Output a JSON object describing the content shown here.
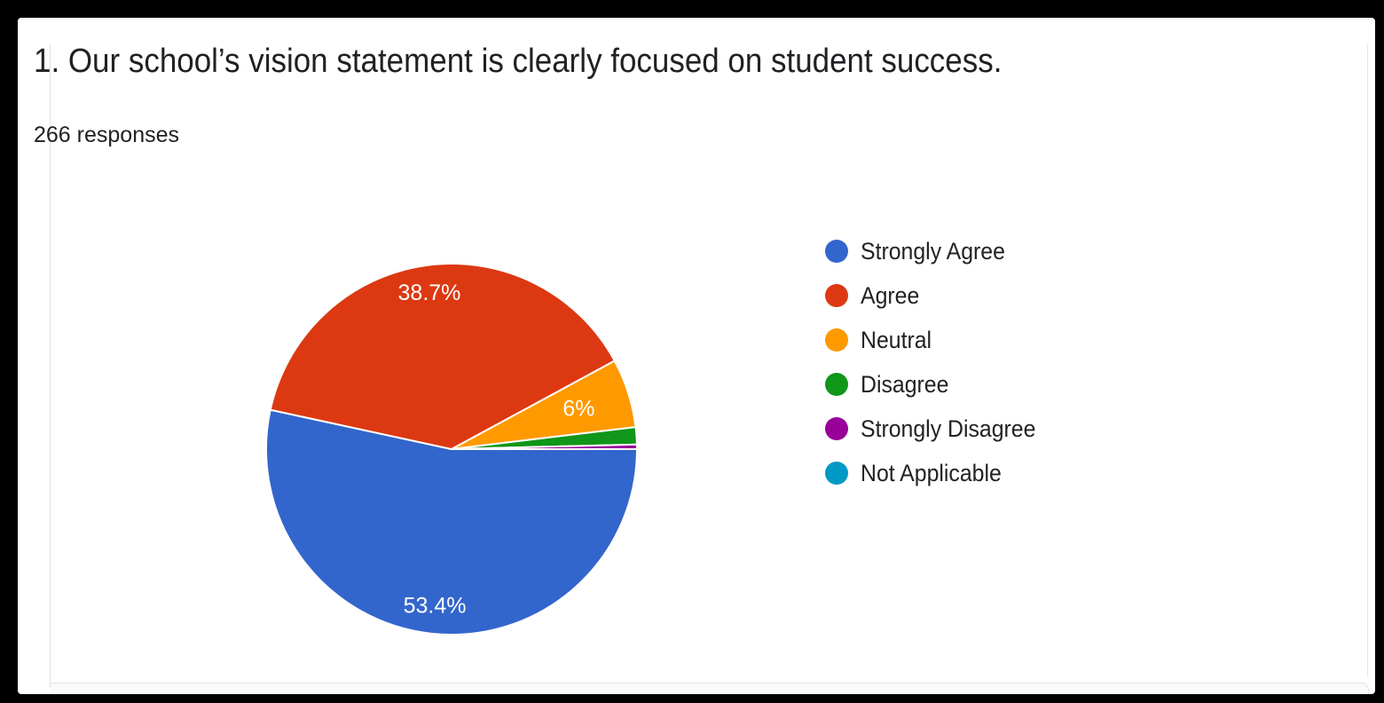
{
  "chart_data": {
    "type": "pie",
    "title": "1.  Our school’s vision statement is clearly focused on student success.",
    "subtitle": "266 responses",
    "legend_position": "right",
    "slices": [
      {
        "label": "Strongly Agree",
        "value": 53.4,
        "color": "#3366cc",
        "data_label": "53.4%"
      },
      {
        "label": "Agree",
        "value": 38.7,
        "color": "#dc3912",
        "data_label": "38.7%"
      },
      {
        "label": "Neutral",
        "value": 6.0,
        "color": "#ff9900",
        "data_label": "6%"
      },
      {
        "label": "Disagree",
        "value": 1.5,
        "color": "#109618",
        "data_label": ""
      },
      {
        "label": "Strongly Disagree",
        "value": 0.4,
        "color": "#990099",
        "data_label": ""
      },
      {
        "label": "Not Applicable",
        "value": 0.0,
        "color": "#0099c6",
        "data_label": ""
      }
    ]
  }
}
